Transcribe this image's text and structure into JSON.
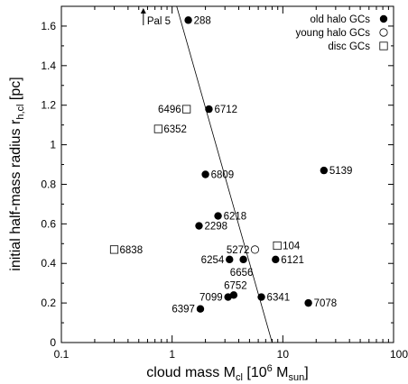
{
  "chart_data": {
    "type": "scatter",
    "xlabel": "cloud mass M",
    "xlabel_sub": "cl",
    "xlabel_unit_open": " [10",
    "xlabel_unit_sup": "6",
    "xlabel_unit_mid": " M",
    "xlabel_unit_sub": "sun",
    "xlabel_unit_close": "]",
    "ylabel": "initial half-mass radius r",
    "ylabel_sub": "h,cl",
    "ylabel_unit": " [pc]",
    "xscale": "log",
    "xlim": [
      0.1,
      100
    ],
    "ylim": [
      0,
      1.7
    ],
    "x_ticks": [
      {
        "value": 0.1,
        "label": "0.1"
      },
      {
        "value": 1,
        "label": "1"
      },
      {
        "value": 10,
        "label": "10"
      },
      {
        "value": 100,
        "label": "100"
      }
    ],
    "y_ticks": [
      {
        "value": 0,
        "label": "0"
      },
      {
        "value": 0.2,
        "label": "0.2"
      },
      {
        "value": 0.4,
        "label": "0.4"
      },
      {
        "value": 0.6,
        "label": "0.6"
      },
      {
        "value": 0.8,
        "label": "0.8"
      },
      {
        "value": 1.0,
        "label": "1"
      },
      {
        "value": 1.2,
        "label": "1.2"
      },
      {
        "value": 1.4,
        "label": "1.4"
      },
      {
        "value": 1.6,
        "label": "1.6"
      }
    ],
    "grid": false,
    "legend_position": "top-right",
    "series": [
      {
        "name": "old halo GCs",
        "marker": "filled-circle",
        "points": [
          {
            "label": "288",
            "x": 1.4,
            "y": 1.63
          },
          {
            "label": "6712",
            "x": 2.15,
            "y": 1.18
          },
          {
            "label": "6809",
            "x": 2.0,
            "y": 0.85
          },
          {
            "label": "5139",
            "x": 23.5,
            "y": 0.87
          },
          {
            "label": "6218",
            "x": 2.6,
            "y": 0.64
          },
          {
            "label": "2298",
            "x": 1.75,
            "y": 0.59
          },
          {
            "label": "6254",
            "x": 3.3,
            "y": 0.42
          },
          {
            "label": "6656",
            "x": 4.4,
            "y": 0.42
          },
          {
            "label": "6121",
            "x": 8.6,
            "y": 0.42
          },
          {
            "label": "6752",
            "x": 3.6,
            "y": 0.24
          },
          {
            "label": "7099",
            "x": 3.2,
            "y": 0.23
          },
          {
            "label": "6341",
            "x": 6.4,
            "y": 0.23
          },
          {
            "label": "7078",
            "x": 17.0,
            "y": 0.2
          },
          {
            "label": "6397",
            "x": 1.8,
            "y": 0.17
          }
        ]
      },
      {
        "name": "young halo GCs",
        "marker": "open-circle",
        "points": [
          {
            "label": "5272",
            "x": 5.6,
            "y": 0.47
          }
        ]
      },
      {
        "name": "disc GCs",
        "marker": "open-square",
        "points": [
          {
            "label": "6496",
            "x": 1.35,
            "y": 1.18
          },
          {
            "label": "6352",
            "x": 0.75,
            "y": 1.08
          },
          {
            "label": "104",
            "x": 8.9,
            "y": 0.49
          },
          {
            "label": "6838",
            "x": 0.3,
            "y": 0.47
          }
        ]
      }
    ],
    "fit_line": {
      "x": [
        1.1,
        8.0
      ],
      "y": [
        1.7,
        0.0
      ]
    },
    "annotations": [
      {
        "label": "Pal 5",
        "x": 0.55,
        "y": 1.7,
        "arrow": "up"
      }
    ]
  }
}
